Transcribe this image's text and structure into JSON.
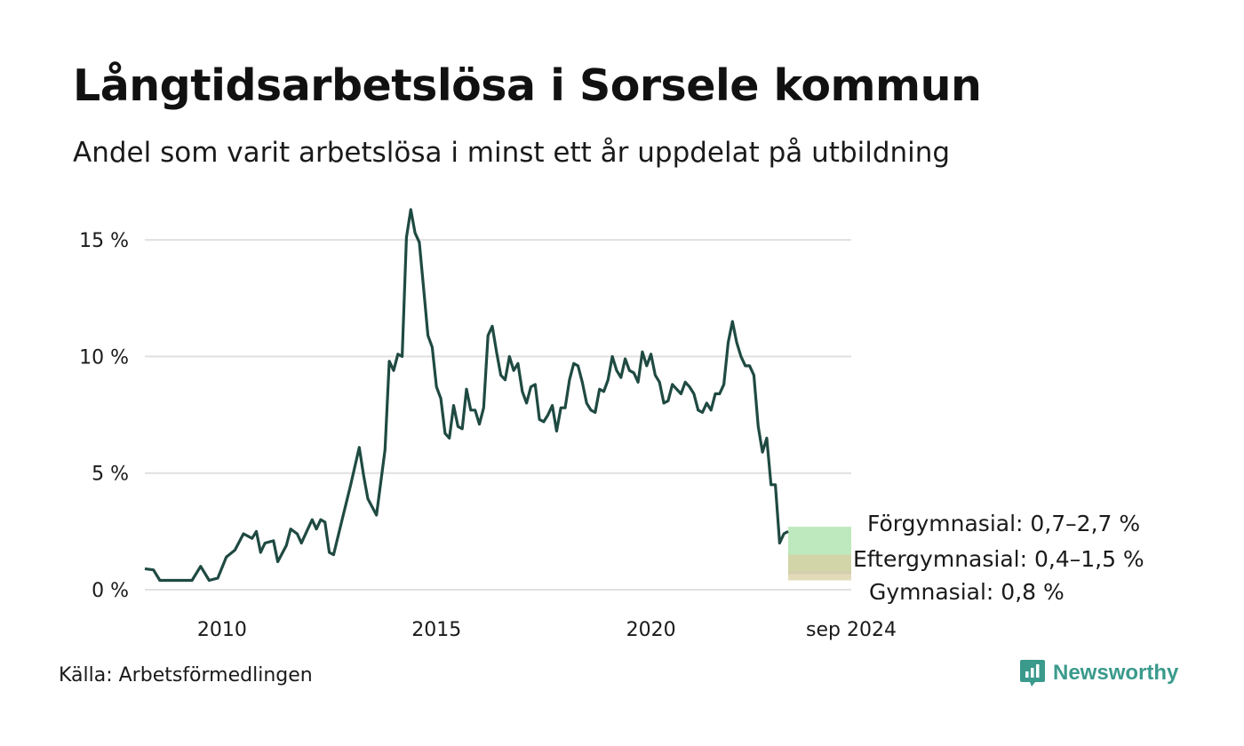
{
  "header": {
    "title": "Långtidsarbetslösa i Sorsele kommun",
    "subtitle": "Andel som varit arbetslösa i minst ett år uppdelat på utbildning"
  },
  "footer": {
    "source": "Källa: Arbetsförmedlingen",
    "brand": "Newsworthy"
  },
  "colors": {
    "forgymnasial": "#1f4a42",
    "eftergymnasial": "#d4a052",
    "gymnasial": "#1e9080",
    "band_forgymnasial": "#a8e0a8",
    "band_eftergymnasial": "#d8cfa0",
    "band_gymnasial": "#c8cde0",
    "brand": "#3a9a8c",
    "grid": "#e0e0e0"
  },
  "chart_data": {
    "type": "line",
    "ylim": [
      0,
      16.3
    ],
    "yticks": [
      0,
      5,
      10,
      15
    ],
    "ytick_labels": [
      "0 %",
      "5 %",
      "10 %",
      "15 %"
    ],
    "xlim": [
      2008.2,
      2024.67
    ],
    "xticks": [
      2010,
      2015,
      2020,
      2024.67
    ],
    "xtick_labels": [
      "2010",
      "2015",
      "2020",
      "sep 2024"
    ],
    "grid": true,
    "series": [
      {
        "name": "Förgymnasial",
        "key": "forgymnasial",
        "label": "Förgymnasial: 0,7–2,7 %",
        "range": [
          0.7,
          2.7
        ],
        "points": [
          [
            2008.2,
            0.9
          ],
          [
            2008.4,
            0.85
          ],
          [
            2008.55,
            0.4
          ],
          [
            2009.0,
            0.4
          ],
          [
            2009.3,
            0.4
          ],
          [
            2009.5,
            1.0
          ],
          [
            2009.7,
            0.4
          ],
          [
            2009.9,
            0.5
          ],
          [
            2010.1,
            1.4
          ],
          [
            2010.3,
            1.7
          ],
          [
            2010.5,
            2.4
          ],
          [
            2010.7,
            2.2
          ],
          [
            2010.8,
            2.5
          ],
          [
            2010.9,
            1.6
          ],
          [
            2011.0,
            2.0
          ],
          [
            2011.2,
            2.1
          ],
          [
            2011.3,
            1.2
          ],
          [
            2011.5,
            1.9
          ],
          [
            2011.6,
            2.6
          ],
          [
            2011.75,
            2.4
          ],
          [
            2011.85,
            2.0
          ],
          [
            2012.0,
            2.6
          ],
          [
            2012.1,
            3.0
          ],
          [
            2012.2,
            2.6
          ],
          [
            2012.3,
            3.0
          ],
          [
            2012.4,
            2.9
          ],
          [
            2012.5,
            1.6
          ],
          [
            2012.6,
            1.5
          ],
          [
            2012.8,
            3.0
          ],
          [
            2013.0,
            4.5
          ],
          [
            2013.2,
            6.1
          ],
          [
            2013.3,
            4.9
          ],
          [
            2013.4,
            3.9
          ],
          [
            2013.6,
            3.2
          ],
          [
            2013.8,
            6.0
          ],
          [
            2013.9,
            9.8
          ],
          [
            2014.0,
            9.4
          ],
          [
            2014.1,
            10.1
          ],
          [
            2014.2,
            10.0
          ],
          [
            2014.3,
            15.1
          ],
          [
            2014.4,
            16.3
          ],
          [
            2014.5,
            15.3
          ],
          [
            2014.6,
            14.9
          ],
          [
            2014.7,
            12.9
          ],
          [
            2014.8,
            10.9
          ],
          [
            2014.9,
            10.4
          ],
          [
            2015.0,
            8.7
          ],
          [
            2015.1,
            8.2
          ],
          [
            2015.2,
            6.7
          ],
          [
            2015.3,
            6.5
          ],
          [
            2015.4,
            7.9
          ],
          [
            2015.5,
            7.0
          ],
          [
            2015.6,
            6.9
          ],
          [
            2015.7,
            8.6
          ],
          [
            2015.8,
            7.7
          ],
          [
            2015.9,
            7.7
          ],
          [
            2016.0,
            7.1
          ],
          [
            2016.1,
            7.8
          ],
          [
            2016.2,
            10.9
          ],
          [
            2016.3,
            11.3
          ],
          [
            2016.4,
            10.2
          ],
          [
            2016.5,
            9.2
          ],
          [
            2016.6,
            9.0
          ],
          [
            2016.7,
            10.0
          ],
          [
            2016.8,
            9.4
          ],
          [
            2016.9,
            9.7
          ],
          [
            2017.0,
            8.5
          ],
          [
            2017.1,
            8.0
          ],
          [
            2017.2,
            8.7
          ],
          [
            2017.3,
            8.8
          ],
          [
            2017.4,
            7.3
          ],
          [
            2017.5,
            7.2
          ],
          [
            2017.6,
            7.5
          ],
          [
            2017.7,
            7.9
          ],
          [
            2017.8,
            6.8
          ],
          [
            2017.9,
            7.8
          ],
          [
            2018.0,
            7.8
          ],
          [
            2018.1,
            9.0
          ],
          [
            2018.2,
            9.7
          ],
          [
            2018.3,
            9.6
          ],
          [
            2018.4,
            8.9
          ],
          [
            2018.5,
            8.0
          ],
          [
            2018.6,
            7.7
          ],
          [
            2018.7,
            7.6
          ],
          [
            2018.8,
            8.6
          ],
          [
            2018.9,
            8.5
          ],
          [
            2019.0,
            9.0
          ],
          [
            2019.1,
            10.0
          ],
          [
            2019.2,
            9.4
          ],
          [
            2019.3,
            9.1
          ],
          [
            2019.4,
            9.9
          ],
          [
            2019.5,
            9.4
          ],
          [
            2019.6,
            9.3
          ],
          [
            2019.7,
            8.9
          ],
          [
            2019.8,
            10.2
          ],
          [
            2019.9,
            9.6
          ],
          [
            2020.0,
            10.1
          ],
          [
            2020.1,
            9.2
          ],
          [
            2020.2,
            8.9
          ],
          [
            2020.3,
            8.0
          ],
          [
            2020.4,
            8.1
          ],
          [
            2020.5,
            8.8
          ],
          [
            2020.6,
            8.6
          ],
          [
            2020.7,
            8.4
          ],
          [
            2020.8,
            8.9
          ],
          [
            2020.9,
            8.7
          ],
          [
            2021.0,
            8.4
          ],
          [
            2021.1,
            7.7
          ],
          [
            2021.2,
            7.6
          ],
          [
            2021.3,
            8.0
          ],
          [
            2021.4,
            7.7
          ],
          [
            2021.5,
            8.4
          ],
          [
            2021.6,
            8.4
          ],
          [
            2021.7,
            8.8
          ],
          [
            2021.8,
            10.6
          ],
          [
            2021.9,
            11.5
          ],
          [
            2022.0,
            10.6
          ],
          [
            2022.1,
            10.0
          ],
          [
            2022.2,
            9.6
          ],
          [
            2022.3,
            9.6
          ],
          [
            2022.4,
            9.2
          ],
          [
            2022.5,
            7.0
          ],
          [
            2022.6,
            5.9
          ],
          [
            2022.7,
            6.5
          ],
          [
            2022.8,
            4.5
          ],
          [
            2022.9,
            4.5
          ],
          [
            2023.0,
            2.0
          ],
          [
            2023.1,
            2.4
          ],
          [
            2023.2,
            2.5
          ]
        ]
      },
      {
        "name": "Gymnasial",
        "key": "gymnasial",
        "label": "Gymnasial: 0,8 %",
        "range": [
          0.8,
          0.8
        ],
        "points": []
      },
      {
        "name": "Eftergymnasial",
        "key": "eftergymnasial",
        "label": "Eftergymnasial: 0,4–1,5 %",
        "range": [
          0.4,
          1.5
        ],
        "points": []
      }
    ]
  }
}
